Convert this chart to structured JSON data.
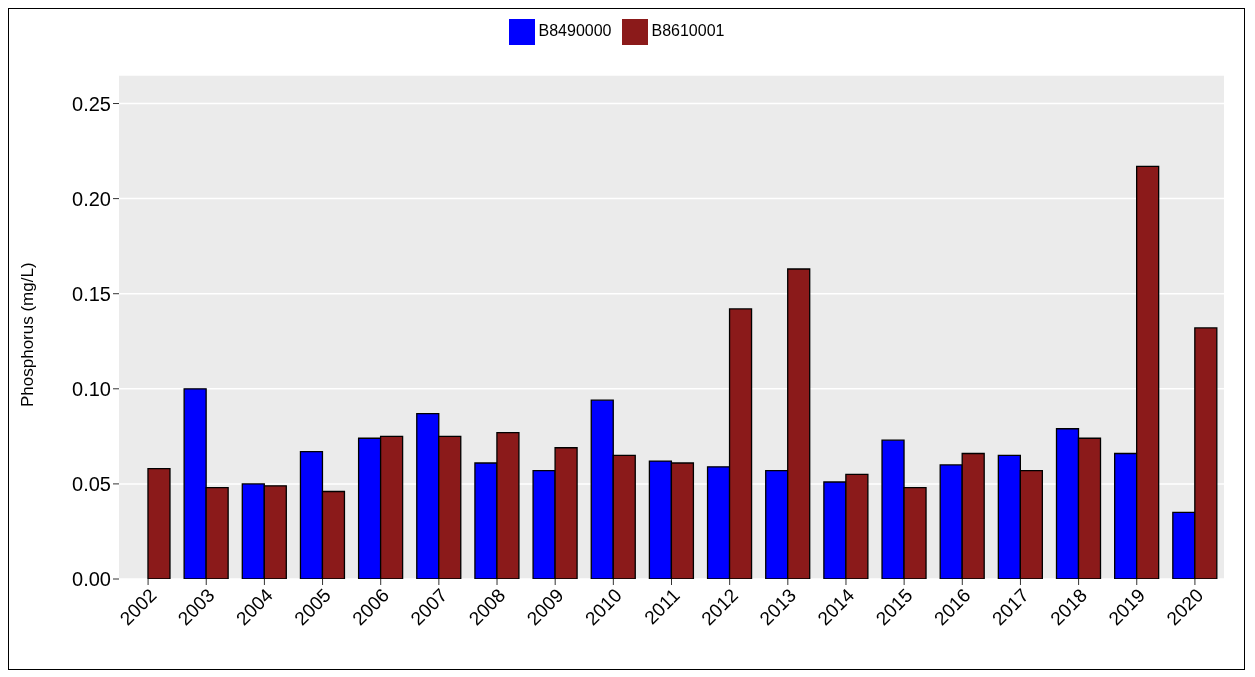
{
  "chart_data": {
    "type": "bar",
    "ylabel": "Phosphorus (mg/L)",
    "categories": [
      "2002",
      "2003",
      "2004",
      "2005",
      "2006",
      "2007",
      "2008",
      "2009",
      "2010",
      "2011",
      "2012",
      "2013",
      "2014",
      "2015",
      "2016",
      "2017",
      "2018",
      "2019",
      "2020"
    ],
    "series": [
      {
        "name": "B8490000",
        "color": "#0000ff",
        "values": [
          null,
          0.1,
          0.05,
          0.067,
          0.074,
          0.087,
          0.061,
          0.057,
          0.094,
          0.062,
          0.059,
          0.057,
          0.051,
          0.073,
          0.06,
          0.065,
          0.079,
          0.066,
          0.035
        ]
      },
      {
        "name": "B8610001",
        "color": "#8b1a1a",
        "values": [
          0.058,
          0.048,
          0.049,
          0.046,
          0.075,
          0.075,
          0.077,
          0.069,
          0.065,
          0.061,
          0.142,
          0.163,
          0.055,
          0.048,
          0.066,
          0.057,
          0.074,
          0.217,
          0.132
        ]
      }
    ],
    "ylim": [
      0,
      0.265
    ],
    "yticks": [
      {
        "value": 0,
        "label": "0.00"
      },
      {
        "value": 0.05,
        "label": "0.05"
      },
      {
        "value": 0.1,
        "label": "0.10"
      },
      {
        "value": 0.15,
        "label": "0.15"
      },
      {
        "value": 0.2,
        "label": "0.20"
      },
      {
        "value": 0.25,
        "label": "0.25"
      }
    ],
    "grid": "y",
    "legend": "top"
  }
}
